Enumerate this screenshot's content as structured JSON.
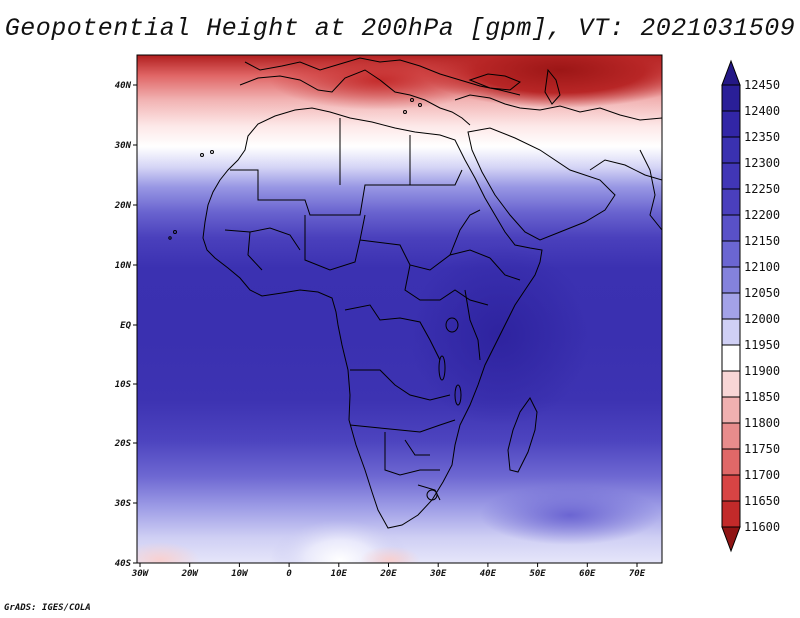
{
  "title": "Geopotential Height at 200hPa [gpm], VT: 2021031509",
  "credit": "GrADS: IGES/COLA",
  "map": {
    "variable": "Geopotential Height",
    "level": "200hPa",
    "units": "gpm",
    "valid_time": "2021031509",
    "lon_ticks": [
      "30W",
      "20W",
      "10W",
      "0",
      "10E",
      "20E",
      "30E",
      "40E",
      "50E",
      "60E",
      "70E"
    ],
    "lat_ticks": [
      "40N",
      "30N",
      "20N",
      "10N",
      "EQ",
      "10S",
      "20S",
      "30S",
      "40S"
    ]
  },
  "colorbar": {
    "levels": [
      "12450",
      "12400",
      "12350",
      "12300",
      "12250",
      "12200",
      "12150",
      "12100",
      "12050",
      "12000",
      "11950",
      "11900",
      "11850",
      "11800",
      "11750",
      "11700",
      "11650",
      "11600"
    ],
    "colors": [
      "#2a1f98",
      "#3226a6",
      "#3a31b0",
      "#4136b6",
      "#4a3fbd",
      "#5951c8",
      "#6b66d2",
      "#8482dd",
      "#a3a2e8",
      "#d0d0f5",
      "#ffffff",
      "#f8d6d6",
      "#f0b0b0",
      "#e88c8c",
      "#e06868",
      "#d84444",
      "#c22a2a",
      "#a51a1a"
    ],
    "extend_top": "#241886",
    "extend_bottom": "#8f1414"
  }
}
